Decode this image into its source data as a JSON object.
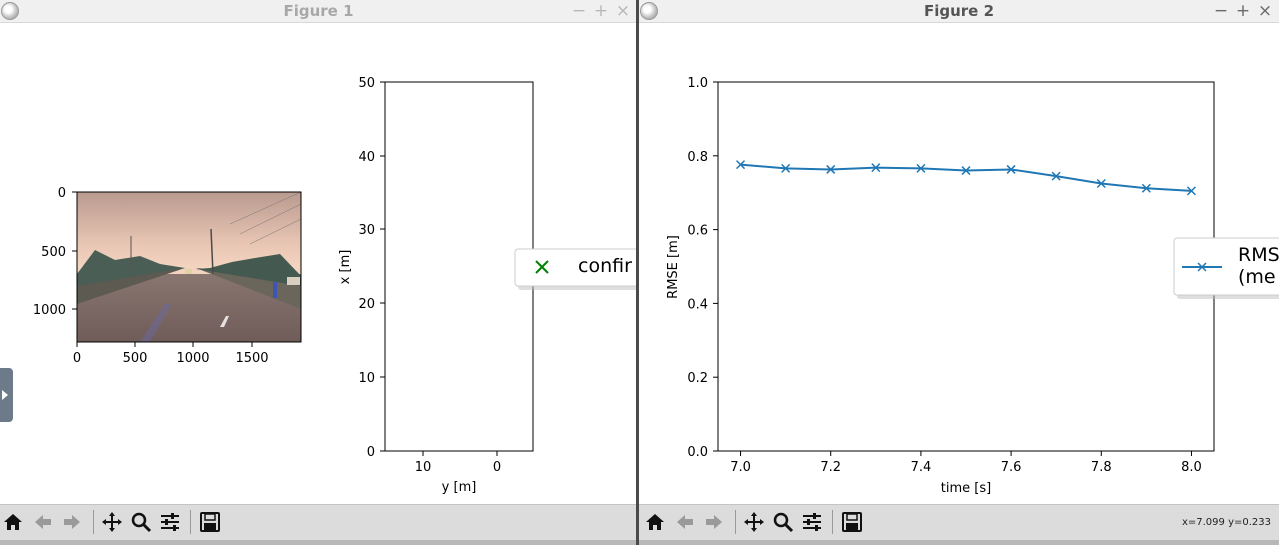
{
  "window1": {
    "title": "Figure 1",
    "image_axes": {
      "x_ticks": [
        "0",
        "500",
        "1000",
        "1500"
      ],
      "y_ticks": [
        "0",
        "500",
        "1000"
      ],
      "image_description_icon": "road-camera-image"
    },
    "tracking_axes": {
      "xlabel": "y [m]",
      "ylabel": "x [m]",
      "x_ticks": [
        "10",
        "0"
      ],
      "y_ticks": [
        "0",
        "10",
        "20",
        "30",
        "40",
        "50"
      ]
    },
    "legend": {
      "marker": "x-marker-icon",
      "marker_color": "#008000",
      "label": "confir"
    }
  },
  "window2": {
    "title": "Figure 2",
    "coord_readout": "x=7.099 y=0.233",
    "legend": {
      "line1": "RMS",
      "line2": "(me"
    }
  },
  "toolbar": {
    "icons": [
      "home-icon",
      "back-icon",
      "forward-icon",
      "pan-icon",
      "zoom-icon",
      "configure-subplots-icon",
      "save-icon"
    ]
  },
  "window_buttons": [
    "−",
    "+",
    "×"
  ],
  "chart_data": {
    "type": "line",
    "title": "",
    "xlabel": "time [s]",
    "ylabel": "RMSE [m]",
    "xlim": [
      6.95,
      8.05
    ],
    "ylim": [
      0.0,
      1.0
    ],
    "x_ticks": [
      "7.0",
      "7.2",
      "7.4",
      "7.6",
      "7.8",
      "8.0"
    ],
    "y_ticks": [
      "0.0",
      "0.2",
      "0.4",
      "0.6",
      "0.8",
      "1.0"
    ],
    "color": "#1f77b4",
    "series": [
      {
        "x": [
          7.0,
          7.1,
          7.2,
          7.3,
          7.4,
          7.5,
          7.6,
          7.7,
          7.8,
          7.9,
          8.0
        ],
        "y": [
          0.776,
          0.766,
          0.763,
          0.768,
          0.766,
          0.76,
          0.763,
          0.745,
          0.725,
          0.712,
          0.705
        ]
      }
    ]
  }
}
